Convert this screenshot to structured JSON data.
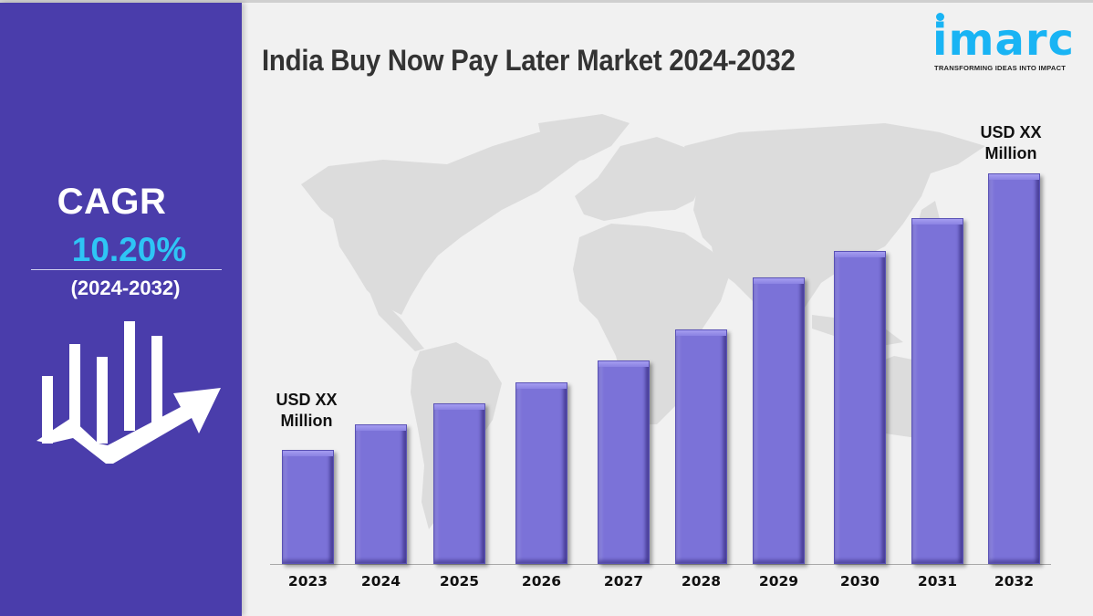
{
  "header": {
    "title": "India Buy Now Pay Later Market 2024-2032"
  },
  "logo": {
    "brand": "imarc",
    "tagline": "TRANSFORMING IDEAS INTO IMPACT",
    "color": "#19b4f4"
  },
  "sidebar": {
    "cagr_label": "CAGR",
    "cagr_value": "10.20%",
    "cagr_period": "(2024-2032)",
    "background": "#4a3dab",
    "value_color": "#2ec5f5",
    "icon": "bar-chart-growth-arrow-icon"
  },
  "annotations": {
    "start": {
      "line1": "USD XX",
      "line2": "Million"
    },
    "end": {
      "line1": "USD XX",
      "line2": "Million"
    }
  },
  "chart_data": {
    "type": "bar",
    "title": "India Buy Now Pay Later Market 2024-2032",
    "categories": [
      "2023",
      "2024",
      "2025",
      "2026",
      "2027",
      "2028",
      "2029",
      "2030",
      "2031",
      "2032"
    ],
    "values": [
      125,
      153,
      176,
      199,
      223,
      257,
      314,
      343,
      379,
      428
    ],
    "value_unit": "relative bar height (px); actual values shown as USD XX Million",
    "annotations": [
      {
        "category": "2023",
        "text": "USD XX Million"
      },
      {
        "category": "2032",
        "text": "USD XX Million"
      }
    ],
    "xlabel": "",
    "ylabel": "",
    "grid": false,
    "legend": "none",
    "bar_color": "#7b72d8",
    "cagr": "10.20%",
    "cagr_period": "2024-2032"
  }
}
